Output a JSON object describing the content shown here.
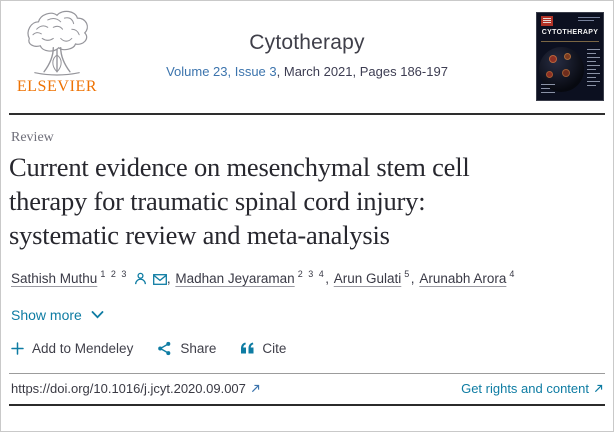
{
  "colors": {
    "teal": "#0e7ca3",
    "link_blue": "#3c74ad",
    "orange": "#ee7203",
    "text_dark": "#3a3a46",
    "title_dark": "#27272e",
    "gray_label": "#6f6f7a"
  },
  "header": {
    "publisher_name": "ELSEVIER",
    "journal_title": "Cytotherapy",
    "volume_link": "Volume 23, Issue 3",
    "issue_rest": ", March 2021, Pages 186-197",
    "cover_title": "CYTOTHERAPY"
  },
  "article": {
    "type_label": "Review",
    "title": "Current evidence on mesenchymal stem cell therapy for traumatic spinal cord injury: systematic review and meta-analysis",
    "authors": [
      {
        "name": "Sathish Muthu",
        "sup": "1 2 3",
        "corresponding": true
      },
      {
        "name": "Madhan Jeyaraman",
        "sup": "2 3 4",
        "corresponding": false
      },
      {
        "name": "Arun Gulati",
        "sup": "5",
        "corresponding": false
      },
      {
        "name": "Arunabh Arora",
        "sup": "4",
        "corresponding": false
      }
    ],
    "show_more_label": "Show more"
  },
  "actions": {
    "add_to_mendeley_label": "Add to Mendeley",
    "share_label": "Share",
    "cite_label": "Cite"
  },
  "footer": {
    "doi_url": "https://doi.org/10.1016/j.jcyt.2020.09.007",
    "rights_label": "Get rights and content"
  }
}
